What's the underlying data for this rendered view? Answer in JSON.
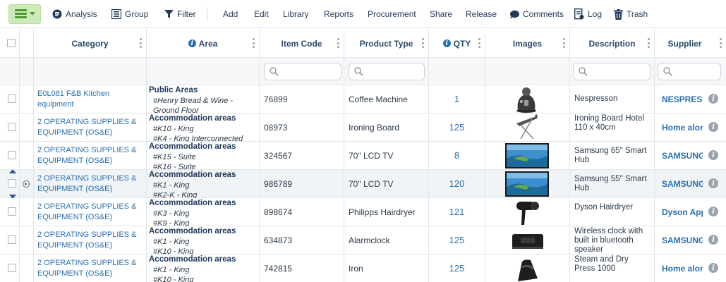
{
  "toolbar": {
    "analysis": "Analysis",
    "group": "Group",
    "filter": "Filter",
    "add": "Add",
    "edit": "Edit",
    "library": "Library",
    "reports": "Reports",
    "procurement": "Procurement",
    "share": "Share",
    "release": "Release",
    "comments": "Comments",
    "log": "Log",
    "trash": "Trash"
  },
  "columns": {
    "category": "Category",
    "area": "Area",
    "item_code": "Item Code",
    "product_type": "Product Type",
    "qty": "QTY",
    "images": "Images",
    "description": "Description",
    "supplier": "Supplier"
  },
  "colors": {
    "link": "#2a6fb0",
    "menu_bg": "#cfeaba",
    "menu_fg": "#4a9c2e"
  },
  "rows": [
    {
      "category": "E0L081 F&B Kitchen equipment",
      "area_title": "Public Areas",
      "area_line1": "#Henry Bread & Wine -",
      "area_line2": "Ground Floor",
      "item_code": "76899",
      "product_type": "Coffee Machine",
      "qty": "1",
      "image": "coffee-machine",
      "description": "Nespresson",
      "supplier": "NESPRESSO"
    },
    {
      "category": "2 OPERATING SUPPLIES & EQUIPMENT (OS&E)",
      "area_title": "Accommodation areas",
      "area_line1": "#K10 - King",
      "area_line2": "#K4 - King Interconnected",
      "item_code": "08973",
      "product_type": "Ironing Board",
      "qty": "125",
      "image": "ironing-board",
      "description": "Ironing Board Hotel 110 x 40cm",
      "supplier": "Home alone"
    },
    {
      "category": "2 OPERATING SUPPLIES & EQUIPMENT (OS&E)",
      "area_title": "Accommodation areas",
      "area_line1": "#K15 - Suite",
      "area_line2": "#K16 - Suite",
      "item_code": "324567",
      "product_type": "70\" LCD TV",
      "qty": "8",
      "image": "lcd-tv",
      "description": "Samsung 65\" Smart Hub",
      "supplier": "SAMSUNG"
    },
    {
      "category": "2 OPERATING SUPPLIES & EQUIPMENT (OS&E)",
      "area_title": "Accommodation areas",
      "area_line1": "#K1 - King",
      "area_line2": "#K2-K - King",
      "item_code": "986789",
      "product_type": "70\" LCD TV",
      "qty": "120",
      "image": "lcd-tv",
      "description": "Samsung 55\" Smart Hub",
      "supplier": "SAMSUNG"
    },
    {
      "category": "2 OPERATING SUPPLIES & EQUIPMENT (OS&E)",
      "area_title": "Accommodation areas",
      "area_line1": "#K3 - King",
      "area_line2": "#K9 - King",
      "item_code": "898674",
      "product_type": "Philipps Hairdryer",
      "qty": "121",
      "image": "hairdryer",
      "description": "Dyson Hairdryer",
      "supplier": "Dyson Appliances"
    },
    {
      "category": "2 OPERATING SUPPLIES & EQUIPMENT (OS&E)",
      "area_title": "Accommodation areas",
      "area_line1": "#K1 - King",
      "area_line2": "#K10 - King",
      "item_code": "634873",
      "product_type": "Alarmclock",
      "qty": "125",
      "image": "alarm-clock",
      "description": "Wireless clock with built in bluetooth speaker",
      "supplier": "SAMSUNG"
    },
    {
      "category": "2 OPERATING SUPPLIES & EQUIPMENT (OS&E)",
      "area_title": "Accommodation areas",
      "area_line1": "#K1 - King",
      "area_line2": "#K10 - King",
      "item_code": "742815",
      "product_type": "Iron",
      "qty": "125",
      "image": "iron",
      "description": "Steam and Dry Press 1000",
      "supplier": "Home alone"
    }
  ]
}
